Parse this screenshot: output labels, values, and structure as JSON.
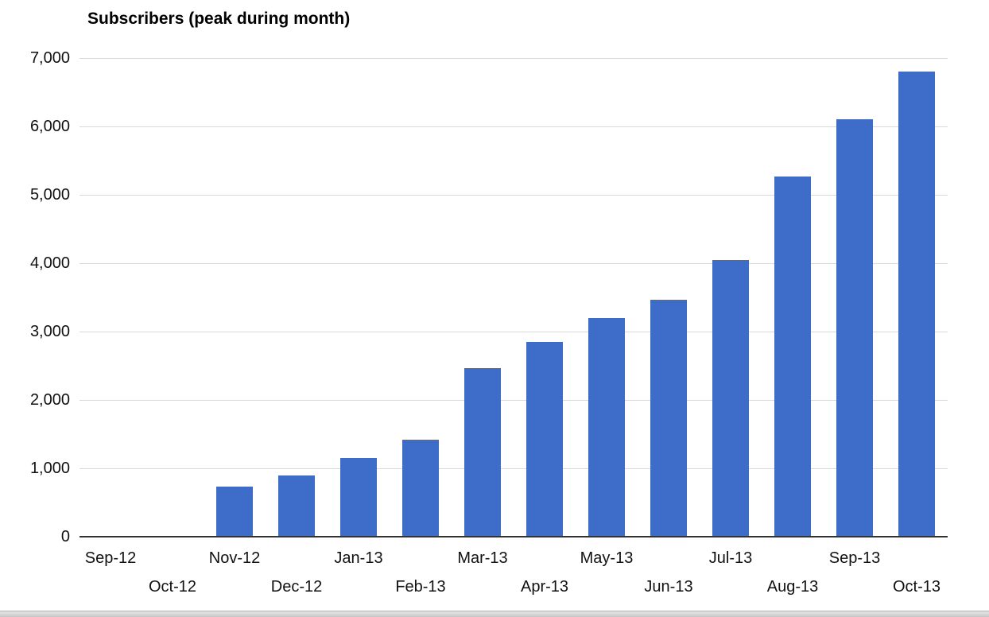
{
  "chart_data": {
    "type": "bar",
    "title": "Subscribers (peak during month)",
    "categories": [
      "Sep-12",
      "Oct-12",
      "Nov-12",
      "Dec-12",
      "Jan-13",
      "Feb-13",
      "Mar-13",
      "Apr-13",
      "May-13",
      "Jun-13",
      "Jul-13",
      "Aug-13",
      "Sep-13",
      "Oct-13"
    ],
    "values": [
      0,
      0,
      730,
      900,
      1150,
      1420,
      2470,
      2850,
      3200,
      3470,
      4050,
      5270,
      6100,
      6800
    ],
    "xlabel": "",
    "ylabel": "",
    "ylim": [
      0,
      7000
    ],
    "ytick_interval": 1000,
    "ytick_labels": [
      "0",
      "1,000",
      "2,000",
      "3,000",
      "4,000",
      "5,000",
      "6,000",
      "7,000"
    ],
    "grid": true,
    "legend_position": "none",
    "bar_color": "#3d6cc9",
    "gridline_color": "#d9d9d9",
    "baseline_color": "#333333",
    "label_color": "#111111",
    "x_labels_staggered": true
  }
}
